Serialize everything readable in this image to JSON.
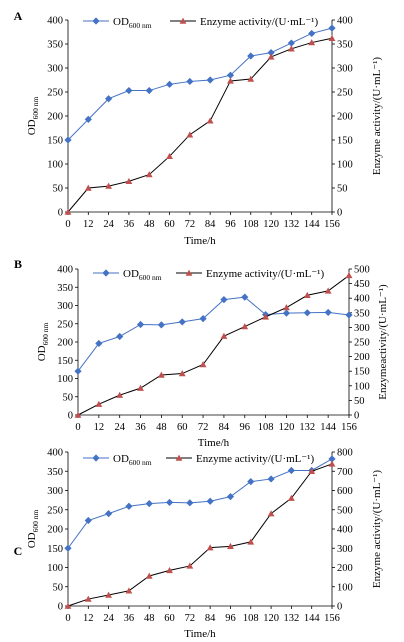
{
  "chart_data": [
    {
      "panel": "A",
      "type": "line",
      "x": [
        0,
        12,
        24,
        36,
        48,
        60,
        72,
        84,
        96,
        108,
        120,
        132,
        144,
        156
      ],
      "xlabel": "Time/h",
      "ylabel_left_main": "OD",
      "ylabel_left_sub": "600 nm",
      "ylabel_right": "Enzyme activity/(U·mL⁻¹)",
      "ylim_left": [
        0,
        400
      ],
      "ylim_right": [
        0,
        400
      ],
      "yticks_left": [
        0,
        50,
        100,
        150,
        200,
        250,
        300,
        350,
        400
      ],
      "yticks_right": [
        0,
        50,
        100,
        150,
        200,
        250,
        300,
        350,
        400
      ],
      "series": [
        {
          "name": "OD",
          "name_sub": "600 nm",
          "axis": "left",
          "marker": "diamond",
          "color": "#4472c4",
          "values": [
            150,
            193,
            236,
            253,
            253,
            266,
            272,
            275,
            285,
            325,
            332,
            352,
            372,
            383
          ]
        },
        {
          "name": "Enzyme activity/(U·mL⁻¹)",
          "axis": "right",
          "marker": "triangle",
          "color": "#c0504d",
          "line_color": "#000000",
          "values": [
            0,
            50,
            54,
            64,
            78,
            116,
            161,
            190,
            273,
            277,
            323,
            340,
            353,
            362
          ]
        }
      ]
    },
    {
      "panel": "B",
      "type": "line",
      "x": [
        0,
        12,
        24,
        36,
        48,
        60,
        72,
        84,
        96,
        108,
        120,
        132,
        144,
        156
      ],
      "xlabel": "Time/h",
      "ylabel_left_main": "OD",
      "ylabel_left_sub": "600 nm",
      "ylabel_right": "Enzymeactivity/(U·mL⁻¹)",
      "ylim_left": [
        0,
        400
      ],
      "ylim_right": [
        0,
        500
      ],
      "yticks_left": [
        0,
        50,
        100,
        150,
        200,
        250,
        300,
        350,
        400
      ],
      "yticks_right": [
        0,
        50,
        100,
        150,
        200,
        250,
        300,
        350,
        400,
        450,
        500
      ],
      "series": [
        {
          "name": "OD",
          "name_sub": "600 nm",
          "axis": "left",
          "marker": "diamond",
          "color": "#4472c4",
          "values": [
            120,
            196,
            215,
            248,
            247,
            255,
            264,
            316,
            323,
            275,
            279,
            280,
            281,
            274
          ]
        },
        {
          "name": "Enzyme activity/(U·mL⁻¹)",
          "axis": "right",
          "marker": "triangle",
          "color": "#c0504d",
          "line_color": "#000000",
          "values": [
            0,
            37,
            68,
            92,
            137,
            142,
            173,
            270,
            303,
            336,
            368,
            410,
            425,
            478
          ]
        }
      ]
    },
    {
      "panel": "C",
      "type": "line",
      "x": [
        0,
        12,
        24,
        36,
        48,
        60,
        72,
        84,
        96,
        108,
        120,
        132,
        144,
        156
      ],
      "xlabel": "Time/h",
      "ylabel_left_main": "OD",
      "ylabel_left_sub": "600 nm",
      "ylabel_right": "Enzyme activity/(U·mL⁻¹)",
      "ylim_left": [
        0,
        400
      ],
      "ylim_right": [
        0,
        800
      ],
      "yticks_left": [
        0,
        50,
        100,
        150,
        200,
        250,
        300,
        350,
        400
      ],
      "yticks_right": [
        0,
        100,
        200,
        300,
        400,
        500,
        600,
        700,
        800
      ],
      "series": [
        {
          "name": "OD",
          "name_sub": "600 nm",
          "axis": "left",
          "marker": "diamond",
          "color": "#4472c4",
          "values": [
            150,
            222,
            240,
            259,
            266,
            269,
            268,
            272,
            284,
            323,
            330,
            352,
            352,
            382
          ]
        },
        {
          "name": "Enzyme activity/(U·mL⁻¹)",
          "axis": "right",
          "marker": "triangle",
          "color": "#c0504d",
          "line_color": "#000000",
          "values": [
            0,
            36,
            57,
            79,
            156,
            185,
            208,
            303,
            310,
            333,
            480,
            560,
            700,
            738
          ]
        }
      ]
    }
  ]
}
